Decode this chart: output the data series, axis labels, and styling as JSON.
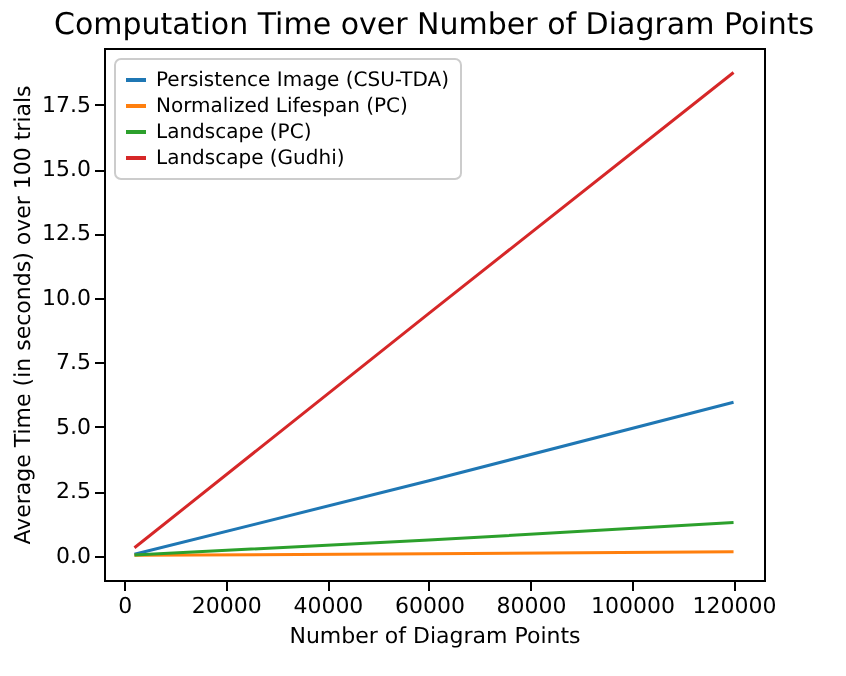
{
  "chart_data": {
    "type": "line",
    "title": "Computation Time over Number of Diagram Points",
    "xlabel": "Number of Diagram Points",
    "ylabel": "Average Time (in seconds) over 100 trials",
    "x": [
      2000,
      60000,
      120000
    ],
    "series": [
      {
        "name": "Persistence Image (CSU-TDA)",
        "color": "#1f77b4",
        "values": [
          0.05,
          2.9,
          5.95
        ]
      },
      {
        "name": "Normalized Lifespan (PC)",
        "color": "#ff7f0e",
        "values": [
          0.01,
          0.07,
          0.15
        ]
      },
      {
        "name": "Landscape (PC)",
        "color": "#2ca02c",
        "values": [
          0.02,
          0.6,
          1.28
        ]
      },
      {
        "name": "Landscape (Gudhi)",
        "color": "#d62728",
        "values": [
          0.3,
          9.4,
          18.75
        ]
      }
    ],
    "xlim": [
      -4000,
      126000
    ],
    "xticks": [
      0,
      20000,
      40000,
      60000,
      80000,
      100000,
      120000
    ],
    "ylim": [
      -0.95,
      19.7
    ],
    "yticks": [
      {
        "value": 0,
        "label": "0.0"
      },
      2.5,
      {
        "value": 5,
        "label": "5.0"
      },
      7.5,
      {
        "value": 10,
        "label": "10.0"
      },
      12.5,
      {
        "value": 15,
        "label": "15.0"
      },
      17.5
    ],
    "grid": false,
    "legend": "top left",
    "line_style": "solid",
    "marker": "none"
  }
}
